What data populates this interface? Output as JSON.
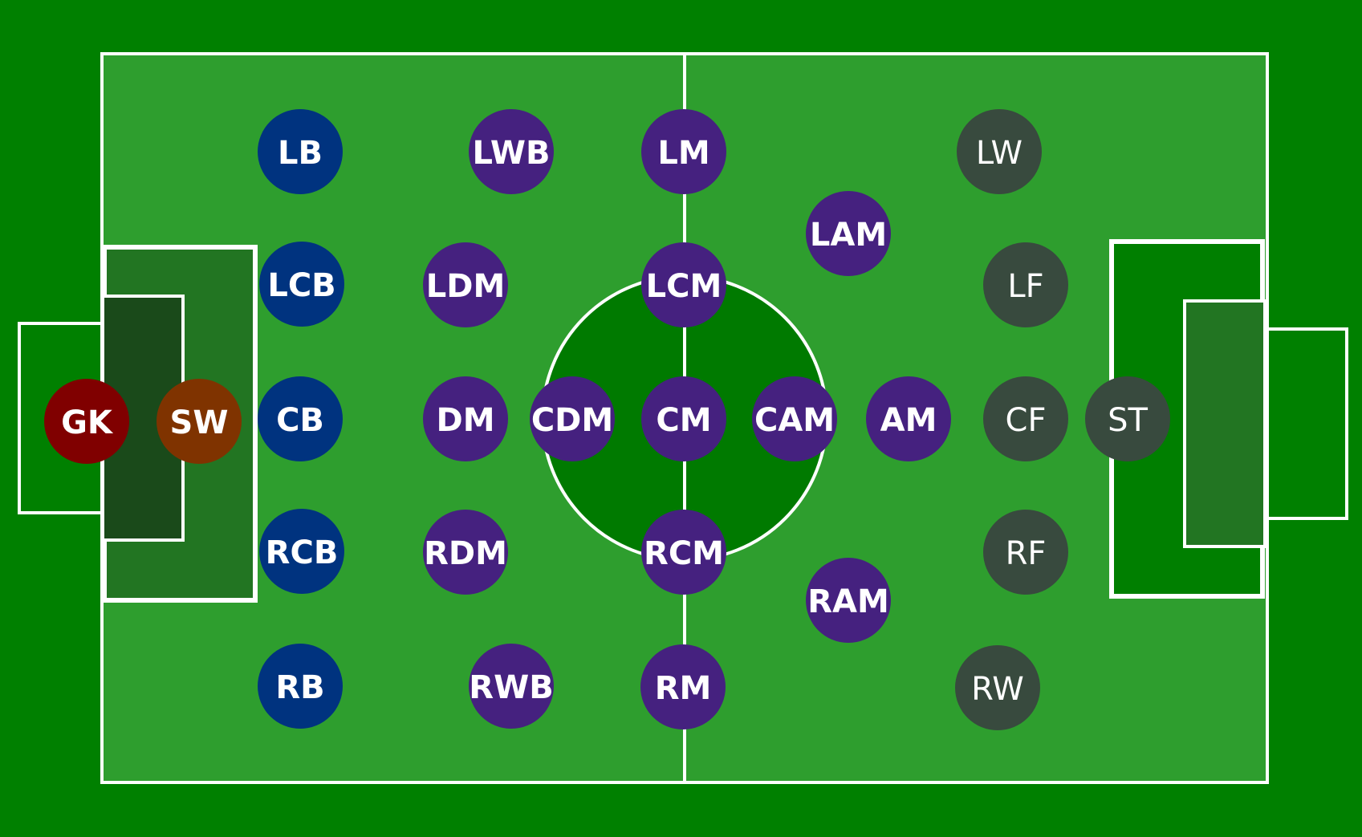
{
  "colors": {
    "background": "#008000",
    "pitch": "#2e9e2e",
    "pitch_lines": "#ffffff",
    "center_circle_fill": "#007a00",
    "left_penalty_area": "#227522",
    "left_goal_area": "#1a4a1a",
    "right_penalty_area": "#007f00",
    "right_goal_area": "#227522"
  },
  "groups": {
    "goalkeeper": {
      "color": "#800000",
      "weight": "bold"
    },
    "sweeper": {
      "color": "#7f3300",
      "weight": "bold"
    },
    "defenders": {
      "color": "#00337f",
      "weight": "bold"
    },
    "midfielders": {
      "color": "#45217f",
      "weight": "bold"
    },
    "forwards": {
      "color": "#384a3e",
      "weight": "normal"
    }
  },
  "positions": [
    {
      "label": "GK",
      "group": "goalkeeper"
    },
    {
      "label": "SW",
      "group": "sweeper"
    },
    {
      "label": "LB",
      "group": "defenders"
    },
    {
      "label": "LCB",
      "group": "defenders"
    },
    {
      "label": "CB",
      "group": "defenders"
    },
    {
      "label": "RCB",
      "group": "defenders"
    },
    {
      "label": "RB",
      "group": "defenders"
    },
    {
      "label": "LWB",
      "group": "midfielders"
    },
    {
      "label": "LDM",
      "group": "midfielders"
    },
    {
      "label": "DM",
      "group": "midfielders"
    },
    {
      "label": "RDM",
      "group": "midfielders"
    },
    {
      "label": "RWB",
      "group": "midfielders"
    },
    {
      "label": "CDM",
      "group": "midfielders"
    },
    {
      "label": "LM",
      "group": "midfielders"
    },
    {
      "label": "LCM",
      "group": "midfielders"
    },
    {
      "label": "CM",
      "group": "midfielders"
    },
    {
      "label": "RCM",
      "group": "midfielders"
    },
    {
      "label": "RM",
      "group": "midfielders"
    },
    {
      "label": "CAM",
      "group": "midfielders"
    },
    {
      "label": "LAM",
      "group": "midfielders"
    },
    {
      "label": "RAM",
      "group": "midfielders"
    },
    {
      "label": "AM",
      "group": "midfielders"
    },
    {
      "label": "LW",
      "group": "forwards"
    },
    {
      "label": "LF",
      "group": "forwards"
    },
    {
      "label": "CF",
      "group": "forwards"
    },
    {
      "label": "RF",
      "group": "forwards"
    },
    {
      "label": "RW",
      "group": "forwards"
    },
    {
      "label": "ST",
      "group": "forwards"
    }
  ]
}
